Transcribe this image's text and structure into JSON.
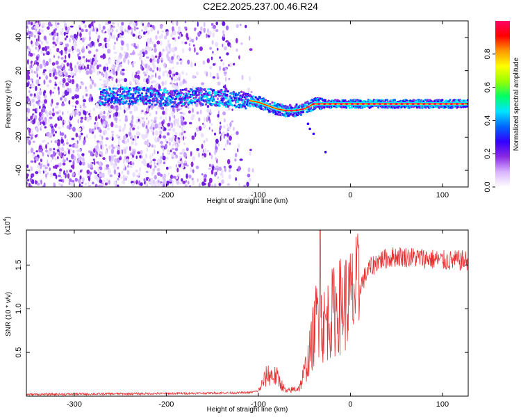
{
  "title": "C2E2.2025.237.00.46.R24",
  "chart_data": [
    {
      "type": "heatmap",
      "name": "spectrogram",
      "xlabel": "Height of straight line (km)",
      "ylabel": "Frequency (Hz)",
      "xlim": [
        -352,
        128
      ],
      "ylim": [
        -50,
        50
      ],
      "xticks": [
        -300,
        -200,
        -100,
        0,
        100
      ],
      "xtick_labels": [
        "-300",
        "-200",
        "-100",
        "0",
        "100"
      ],
      "yticks": [
        -40,
        -20,
        0,
        20,
        40
      ],
      "ytick_labels": [
        "-40",
        "-20",
        "0",
        "20",
        "40"
      ],
      "colorbar": {
        "label": "Normalized spectral amplitude",
        "range": [
          0,
          1
        ],
        "ticks": [
          0.0,
          0.2,
          0.4,
          0.6,
          0.8
        ],
        "tick_labels": [
          "0.0",
          "0.2",
          "0.4",
          "0.6",
          "0.8"
        ],
        "colors": [
          "#ffffff",
          "#d9b3ff",
          "#8a2be2",
          "#3300ff",
          "#0066ff",
          "#00e5ff",
          "#00ff66",
          "#99ff00",
          "#ffff00",
          "#ff9900",
          "#ff0000",
          "#ff0066"
        ]
      },
      "signal_track": [
        {
          "x": -270,
          "f": 4
        },
        {
          "x": -250,
          "f": 5
        },
        {
          "x": -230,
          "f": 5
        },
        {
          "x": -210,
          "f": 4
        },
        {
          "x": -190,
          "f": 3
        },
        {
          "x": -170,
          "f": 5
        },
        {
          "x": -150,
          "f": 4
        },
        {
          "x": -130,
          "f": 3
        },
        {
          "x": -110,
          "f": 2
        },
        {
          "x": -100,
          "f": 1
        },
        {
          "x": -90,
          "f": -1
        },
        {
          "x": -80,
          "f": -3
        },
        {
          "x": -70,
          "f": -4
        },
        {
          "x": -60,
          "f": -4
        },
        {
          "x": -50,
          "f": -3
        },
        {
          "x": -40,
          "f": 0
        },
        {
          "x": -30,
          "f": 0
        },
        {
          "x": 0,
          "f": 0
        },
        {
          "x": 50,
          "f": 0
        },
        {
          "x": 128,
          "f": 0
        }
      ],
      "noise_region_end": -130
    },
    {
      "type": "line",
      "name": "snr",
      "xlabel": "Height of straight line (km)",
      "ylabel": "SNR (10 * v/v)",
      "y_scale_note": "(x10",
      "y_scale_exponent": "4",
      "xlim": [
        -352,
        128
      ],
      "ylim": [
        0,
        1.9
      ],
      "xticks": [
        -300,
        -200,
        -100,
        0,
        100
      ],
      "xtick_labels": [
        "-300",
        "-200",
        "-100",
        "0",
        "100"
      ],
      "yticks": [
        0.5,
        1.0,
        1.5
      ],
      "ytick_labels": [
        "0.5",
        "1.0",
        "1.5"
      ],
      "color": "#e83030",
      "envelope": [
        {
          "x": -352,
          "y": 0.02
        },
        {
          "x": -200,
          "y": 0.03
        },
        {
          "x": -110,
          "y": 0.04
        },
        {
          "x": -100,
          "y": 0.06
        },
        {
          "x": -90,
          "y": 0.25
        },
        {
          "x": -80,
          "y": 0.22
        },
        {
          "x": -70,
          "y": 0.05
        },
        {
          "x": -55,
          "y": 0.1
        },
        {
          "x": -45,
          "y": 0.45
        },
        {
          "x": -40,
          "y": 0.7
        },
        {
          "x": -35,
          "y": 1.0
        },
        {
          "x": -30,
          "y": 0.8
        },
        {
          "x": -20,
          "y": 0.95
        },
        {
          "x": -10,
          "y": 1.05
        },
        {
          "x": 0,
          "y": 1.1
        },
        {
          "x": 10,
          "y": 1.25
        },
        {
          "x": 20,
          "y": 1.45
        },
        {
          "x": 30,
          "y": 1.55
        },
        {
          "x": 50,
          "y": 1.6
        },
        {
          "x": 80,
          "y": 1.58
        },
        {
          "x": 100,
          "y": 1.55
        },
        {
          "x": 128,
          "y": 1.55
        }
      ],
      "peak": {
        "x": -33,
        "y": 1.9
      }
    }
  ]
}
